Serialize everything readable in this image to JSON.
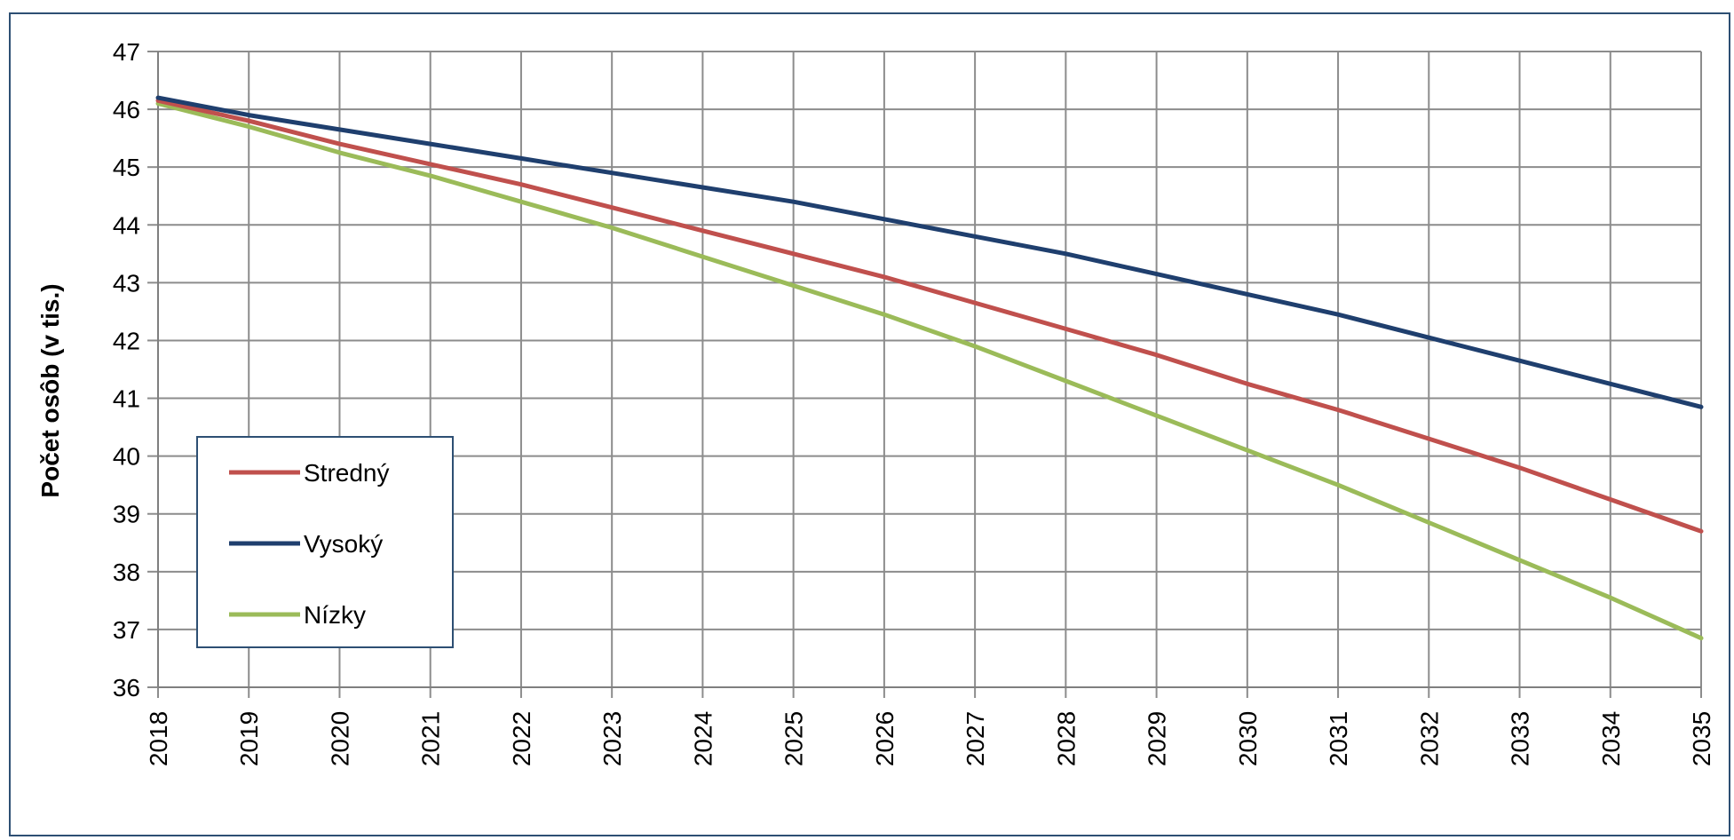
{
  "chart_data": {
    "type": "line",
    "title": "",
    "xlabel": "",
    "ylabel": "Počet osôb (v tis.)",
    "x": [
      2018,
      2019,
      2020,
      2021,
      2022,
      2023,
      2024,
      2025,
      2026,
      2027,
      2028,
      2029,
      2030,
      2031,
      2032,
      2033,
      2034,
      2035
    ],
    "ylim": [
      36,
      47
    ],
    "yticks": [
      36,
      37,
      38,
      39,
      40,
      41,
      42,
      43,
      44,
      45,
      46,
      47
    ],
    "grid": true,
    "legend_position": "bottom-left",
    "series": [
      {
        "name": "Stredný",
        "color": "#c0504d",
        "values": [
          46.15,
          45.8,
          45.4,
          45.05,
          44.7,
          44.3,
          43.9,
          43.5,
          43.1,
          42.65,
          42.2,
          41.75,
          41.25,
          40.8,
          40.3,
          39.8,
          39.25,
          38.7
        ]
      },
      {
        "name": "Vysoký",
        "color": "#1f3f6e",
        "values": [
          46.2,
          45.9,
          45.65,
          45.4,
          45.15,
          44.9,
          44.65,
          44.4,
          44.1,
          43.8,
          43.5,
          43.15,
          42.8,
          42.45,
          42.05,
          41.65,
          41.25,
          40.85
        ]
      },
      {
        "name": "Nízky",
        "color": "#9bbb59",
        "values": [
          46.1,
          45.7,
          45.25,
          44.85,
          44.4,
          43.95,
          43.45,
          42.95,
          42.45,
          41.9,
          41.3,
          40.7,
          40.1,
          39.5,
          38.85,
          38.2,
          37.55,
          36.85
        ]
      }
    ]
  }
}
